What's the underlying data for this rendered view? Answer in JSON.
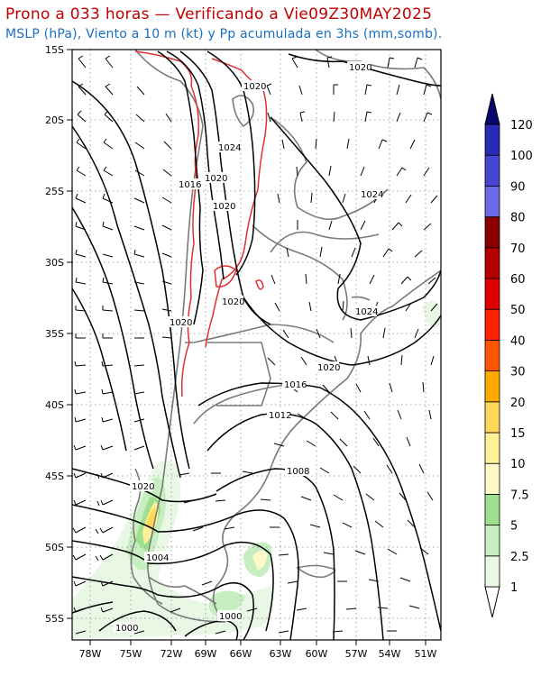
{
  "header": {
    "title": "Prono a 033 horas — Verificando a Vie09Z30MAY2025",
    "subtitle": "MSLP (hPa), Viento a 10 m (kt) y Pp acumulada en 3hs (mm,somb)."
  },
  "map": {
    "lat_labels": [
      "15S",
      "20S",
      "25S",
      "30S",
      "35S",
      "40S",
      "45S",
      "50S",
      "55S"
    ],
    "lon_labels": [
      "78W",
      "75W",
      "72W",
      "69W",
      "66W",
      "63W",
      "60W",
      "57W",
      "54W",
      "51W"
    ],
    "isobars": [
      {
        "label": "1020"
      },
      {
        "label": "1020"
      },
      {
        "label": "1024"
      },
      {
        "label": "1016"
      },
      {
        "label": "1020"
      },
      {
        "label": "1020"
      },
      {
        "label": "1024"
      },
      {
        "label": "1020"
      },
      {
        "label": "1020"
      },
      {
        "label": "1024"
      },
      {
        "label": "1020"
      },
      {
        "label": "1016"
      },
      {
        "label": "1012"
      },
      {
        "label": "1008"
      },
      {
        "label": "1020"
      },
      {
        "label": "1004"
      },
      {
        "label": "1000"
      },
      {
        "label": "1000"
      }
    ]
  },
  "colorbar": {
    "levels": [
      {
        "label": "1",
        "color": "#e8f8e4"
      },
      {
        "label": "2.5",
        "color": "#c6eec0"
      },
      {
        "label": "5",
        "color": "#9ee08f"
      },
      {
        "label": "7.5",
        "color": "#fff9c8"
      },
      {
        "label": "10",
        "color": "#ffef99"
      },
      {
        "label": "15",
        "color": "#ffd85a"
      },
      {
        "label": "20",
        "color": "#ffaa00"
      },
      {
        "label": "30",
        "color": "#ff5500"
      },
      {
        "label": "40",
        "color": "#ff2200"
      },
      {
        "label": "50",
        "color": "#e00000"
      },
      {
        "label": "60",
        "color": "#b40000"
      },
      {
        "label": "70",
        "color": "#8a0000"
      },
      {
        "label": "80",
        "color": "#6a6ae6"
      },
      {
        "label": "90",
        "color": "#4646d2"
      },
      {
        "label": "100",
        "color": "#2a2ab8"
      },
      {
        "label": "120",
        "color": "#14148e"
      }
    ],
    "top_arrow_color": "#080870"
  }
}
